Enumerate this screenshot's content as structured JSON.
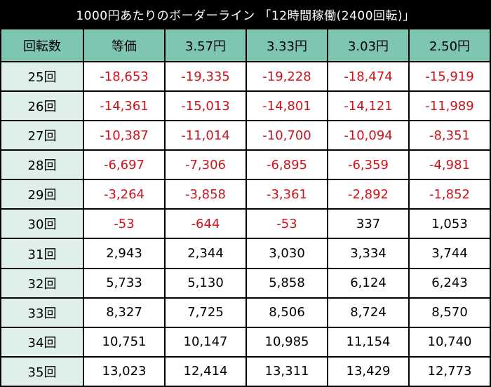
{
  "title": "1000円あたりのボーダーライン 「12時間稼働(2400回転)」",
  "colors": {
    "header_bg": "#7fc6b2",
    "row_label_bg": "#dff0ea",
    "negative_text": "#d0121b",
    "positive_text": "#000000",
    "border": "#000000"
  },
  "table": {
    "headers": [
      "回転数",
      "等価",
      "3.57円",
      "3.33円",
      "3.03円",
      "2.50円"
    ],
    "rows": [
      {
        "label": "25回",
        "values": [
          "-18,653",
          "-19,335",
          "-19,228",
          "-18,474",
          "-15,919"
        ]
      },
      {
        "label": "26回",
        "values": [
          "-14,361",
          "-15,013",
          "-14,801",
          "-14,121",
          "-11,989"
        ]
      },
      {
        "label": "27回",
        "values": [
          "-10,387",
          "-11,014",
          "-10,700",
          "-10,094",
          "-8,351"
        ]
      },
      {
        "label": "28回",
        "values": [
          "-6,697",
          "-7,306",
          "-6,895",
          "-6,359",
          "-4,981"
        ]
      },
      {
        "label": "29回",
        "values": [
          "-3,264",
          "-3,858",
          "-3,361",
          "-2,892",
          "-1,852"
        ]
      },
      {
        "label": "30回",
        "values": [
          "-53",
          "-644",
          "-53",
          "337",
          "1,053"
        ]
      },
      {
        "label": "31回",
        "values": [
          "2,943",
          "2,344",
          "3,030",
          "3,334",
          "3,744"
        ]
      },
      {
        "label": "32回",
        "values": [
          "5,733",
          "5,130",
          "5,858",
          "6,124",
          "6,243"
        ]
      },
      {
        "label": "33回",
        "values": [
          "8,327",
          "7,725",
          "8,506",
          "8,724",
          "8,570"
        ]
      },
      {
        "label": "34回",
        "values": [
          "10,751",
          "10,147",
          "10,985",
          "11,154",
          "10,740"
        ]
      },
      {
        "label": "35回",
        "values": [
          "13,023",
          "12,414",
          "13,311",
          "13,429",
          "12,773"
        ]
      }
    ]
  }
}
